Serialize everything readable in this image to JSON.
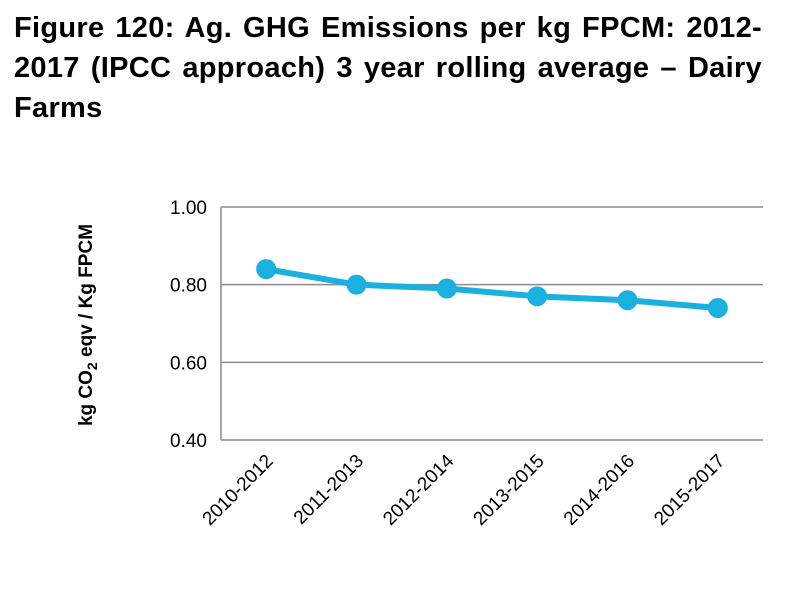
{
  "chart_data": {
    "type": "line",
    "title": "Figure 120: Ag. GHG Emissions per kg FPCM: 2012-2017 (IPCC approach) 3 year rolling average – Dairy Farms",
    "xlabel": "",
    "ylabel": "kg CO2 eqv / Kg FPCM",
    "ylabel_parts": {
      "pre": "kg CO",
      "sub": "2",
      "post": " eqv / Kg FPCM"
    },
    "categories": [
      "2010-2012",
      "2011-2013",
      "2012-2014",
      "2013-2015",
      "2014-2016",
      "2015-2017"
    ],
    "series": [
      {
        "name": "Dairy Farms",
        "values": [
          0.84,
          0.8,
          0.79,
          0.77,
          0.76,
          0.74
        ],
        "color": "#1ab0e0"
      }
    ],
    "ylim": [
      0.4,
      1.0
    ],
    "yticks": [
      "0.40",
      "0.60",
      "0.80",
      "1.00"
    ],
    "grid": true,
    "legend": "none"
  }
}
